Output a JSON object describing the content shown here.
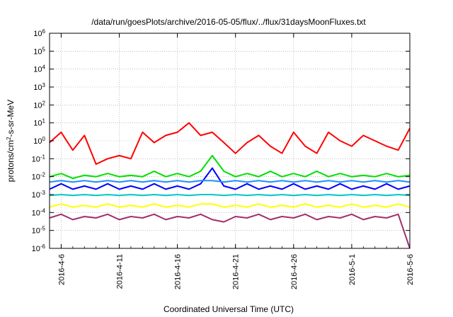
{
  "chart_data": {
    "type": "line",
    "title": "/data/run/goesPlots/archive/2016-05-05/flux/../flux/31daysMoonFluxes.txt",
    "xlabel": "Coordinated Universal Time (UTC)",
    "ylabel": {
      "prefix": "protons/cm",
      "sup": "2",
      "suffix": "-s-sr-MeV"
    },
    "y_scale": "log",
    "ylim": [
      -6,
      6
    ],
    "y_ticks": [
      {
        "base": "10",
        "exp": "6",
        "value": 6
      },
      {
        "base": "10",
        "exp": "5",
        "value": 5
      },
      {
        "base": "10",
        "exp": "4",
        "value": 4
      },
      {
        "base": "10",
        "exp": "3",
        "value": 3
      },
      {
        "base": "10",
        "exp": "2",
        "value": 2
      },
      {
        "base": "10",
        "exp": "1",
        "value": 1
      },
      {
        "base": "10",
        "exp": "0",
        "value": 0
      },
      {
        "base": "10",
        "exp": "-1",
        "value": -1
      },
      {
        "base": "10",
        "exp": "-2",
        "value": -2
      },
      {
        "base": "10",
        "exp": "-3",
        "value": -3
      },
      {
        "base": "10",
        "exp": "-4",
        "value": -4
      },
      {
        "base": "10",
        "exp": "-5",
        "value": -5
      },
      {
        "base": "10",
        "exp": "-6",
        "value": -6
      }
    ],
    "xlim": [
      "2016-04-05",
      "2016-05-06"
    ],
    "x_ticks": [
      {
        "label": "2016-4-6",
        "date": "2016-04-06"
      },
      {
        "label": "2016-4-11",
        "date": "2016-04-11"
      },
      {
        "label": "2016-4-16",
        "date": "2016-04-16"
      },
      {
        "label": "2016-4-21",
        "date": "2016-04-21"
      },
      {
        "label": "2016-4-26",
        "date": "2016-04-26"
      },
      {
        "label": "2016-5-1",
        "date": "2016-05-01"
      },
      {
        "label": "2016-5-6",
        "date": "2016-05-06"
      }
    ],
    "grid": true,
    "series": [
      {
        "color": "#ff0000",
        "x": [
          "2016-04-05",
          "2016-04-06",
          "2016-04-07",
          "2016-04-08",
          "2016-04-09",
          "2016-04-10",
          "2016-04-11",
          "2016-04-12",
          "2016-04-13",
          "2016-04-14",
          "2016-04-15",
          "2016-04-16",
          "2016-04-17",
          "2016-04-18",
          "2016-04-19",
          "2016-04-20",
          "2016-04-21",
          "2016-04-22",
          "2016-04-23",
          "2016-04-24",
          "2016-04-25",
          "2016-04-26",
          "2016-04-27",
          "2016-04-28",
          "2016-04-29",
          "2016-04-30",
          "2016-05-01",
          "2016-05-02",
          "2016-05-03",
          "2016-05-04",
          "2016-05-05",
          "2016-05-06"
        ],
        "y": [
          0.8,
          3,
          0.3,
          2,
          0.05,
          0.1,
          0.15,
          0.1,
          3,
          0.8,
          2,
          3,
          10,
          2,
          3,
          0.8,
          0.2,
          0.8,
          2,
          0.5,
          0.2,
          3,
          0.5,
          0.2,
          3,
          1,
          0.5,
          2,
          1,
          0.5,
          0.3,
          5
        ]
      },
      {
        "color": "#00e000",
        "x": [
          "2016-04-05",
          "2016-04-06",
          "2016-04-07",
          "2016-04-08",
          "2016-04-09",
          "2016-04-10",
          "2016-04-11",
          "2016-04-12",
          "2016-04-13",
          "2016-04-14",
          "2016-04-15",
          "2016-04-16",
          "2016-04-17",
          "2016-04-18",
          "2016-04-19",
          "2016-04-20",
          "2016-04-21",
          "2016-04-22",
          "2016-04-23",
          "2016-04-24",
          "2016-04-25",
          "2016-04-26",
          "2016-04-27",
          "2016-04-28",
          "2016-04-29",
          "2016-04-30",
          "2016-05-01",
          "2016-05-02",
          "2016-05-03",
          "2016-05-04",
          "2016-05-05",
          "2016-05-06"
        ],
        "y": [
          0.01,
          0.015,
          0.008,
          0.012,
          0.01,
          0.015,
          0.01,
          0.012,
          0.01,
          0.02,
          0.01,
          0.015,
          0.01,
          0.02,
          0.15,
          0.02,
          0.01,
          0.015,
          0.01,
          0.02,
          0.01,
          0.015,
          0.01,
          0.02,
          0.01,
          0.015,
          0.01,
          0.012,
          0.01,
          0.015,
          0.01,
          0.012
        ]
      },
      {
        "color": "#0000ff",
        "x": [
          "2016-04-05",
          "2016-04-06",
          "2016-04-07",
          "2016-04-08",
          "2016-04-09",
          "2016-04-10",
          "2016-04-11",
          "2016-04-12",
          "2016-04-13",
          "2016-04-14",
          "2016-04-15",
          "2016-04-16",
          "2016-04-17",
          "2016-04-18",
          "2016-04-19",
          "2016-04-20",
          "2016-04-21",
          "2016-04-22",
          "2016-04-23",
          "2016-04-24",
          "2016-04-25",
          "2016-04-26",
          "2016-04-27",
          "2016-04-28",
          "2016-04-29",
          "2016-04-30",
          "2016-05-01",
          "2016-05-02",
          "2016-05-03",
          "2016-05-04",
          "2016-05-05",
          "2016-05-06"
        ],
        "y": [
          0.002,
          0.004,
          0.002,
          0.003,
          0.002,
          0.004,
          0.002,
          0.003,
          0.002,
          0.004,
          0.002,
          0.003,
          0.002,
          0.004,
          0.03,
          0.003,
          0.002,
          0.004,
          0.002,
          0.003,
          0.002,
          0.004,
          0.002,
          0.003,
          0.002,
          0.004,
          0.002,
          0.003,
          0.002,
          0.004,
          0.002,
          0.003
        ]
      },
      {
        "color": "#1e90ff",
        "x": [
          "2016-04-05",
          "2016-04-06",
          "2016-04-07",
          "2016-04-08",
          "2016-04-09",
          "2016-04-10",
          "2016-04-11",
          "2016-04-12",
          "2016-04-13",
          "2016-04-14",
          "2016-04-15",
          "2016-04-16",
          "2016-04-17",
          "2016-04-18",
          "2016-04-19",
          "2016-04-20",
          "2016-04-21",
          "2016-04-22",
          "2016-04-23",
          "2016-04-24",
          "2016-04-25",
          "2016-04-26",
          "2016-04-27",
          "2016-04-28",
          "2016-04-29",
          "2016-04-30",
          "2016-05-01",
          "2016-05-02",
          "2016-05-03",
          "2016-05-04",
          "2016-05-05",
          "2016-05-06"
        ],
        "y": [
          0.005,
          0.006,
          0.005,
          0.006,
          0.005,
          0.006,
          0.005,
          0.006,
          0.005,
          0.006,
          0.005,
          0.006,
          0.005,
          0.006,
          0.006,
          0.005,
          0.006,
          0.005,
          0.006,
          0.005,
          0.006,
          0.005,
          0.006,
          0.005,
          0.006,
          0.005,
          0.006,
          0.005,
          0.006,
          0.005,
          0.006,
          0.005
        ]
      },
      {
        "color": "#00c8c8",
        "x": [
          "2016-04-05",
          "2016-04-06",
          "2016-04-07",
          "2016-04-08",
          "2016-04-09",
          "2016-04-10",
          "2016-04-11",
          "2016-04-12",
          "2016-04-13",
          "2016-04-14",
          "2016-04-15",
          "2016-04-16",
          "2016-04-17",
          "2016-04-18",
          "2016-04-19",
          "2016-04-20",
          "2016-04-21",
          "2016-04-22",
          "2016-04-23",
          "2016-04-24",
          "2016-04-25",
          "2016-04-26",
          "2016-04-27",
          "2016-04-28",
          "2016-04-29",
          "2016-04-30",
          "2016-05-01",
          "2016-05-02",
          "2016-05-03",
          "2016-05-04",
          "2016-05-05",
          "2016-05-06"
        ],
        "y": [
          0.0009,
          0.001,
          0.0009,
          0.001,
          0.0009,
          0.001,
          0.0009,
          0.001,
          0.0009,
          0.001,
          0.0009,
          0.001,
          0.0009,
          0.001,
          0.001,
          0.0009,
          0.001,
          0.0009,
          0.001,
          0.0009,
          0.001,
          0.0009,
          0.001,
          0.0009,
          0.001,
          0.0009,
          0.001,
          0.0009,
          0.001,
          0.0009,
          0.001,
          0.0009
        ]
      },
      {
        "color": "#ffff00",
        "x": [
          "2016-04-05",
          "2016-04-06",
          "2016-04-07",
          "2016-04-08",
          "2016-04-09",
          "2016-04-10",
          "2016-04-11",
          "2016-04-12",
          "2016-04-13",
          "2016-04-14",
          "2016-04-15",
          "2016-04-16",
          "2016-04-17",
          "2016-04-18",
          "2016-04-19",
          "2016-04-20",
          "2016-04-21",
          "2016-04-22",
          "2016-04-23",
          "2016-04-24",
          "2016-04-25",
          "2016-04-26",
          "2016-04-27",
          "2016-04-28",
          "2016-04-29",
          "2016-04-30",
          "2016-05-01",
          "2016-05-02",
          "2016-05-03",
          "2016-05-04",
          "2016-05-05",
          "2016-05-06"
        ],
        "y": [
          0.0002,
          0.0003,
          0.0002,
          0.00025,
          0.0002,
          0.0003,
          0.0002,
          0.00025,
          0.0002,
          0.0003,
          0.0002,
          0.00025,
          0.0002,
          0.0003,
          0.0003,
          0.0002,
          0.00025,
          0.0002,
          0.0003,
          0.0002,
          0.00025,
          0.0002,
          0.0003,
          0.0002,
          0.00025,
          0.0002,
          0.0003,
          0.0002,
          0.00025,
          0.0002,
          0.0003,
          0.0002
        ]
      },
      {
        "color": "#a0306e",
        "x": [
          "2016-04-05",
          "2016-04-06",
          "2016-04-07",
          "2016-04-08",
          "2016-04-09",
          "2016-04-10",
          "2016-04-11",
          "2016-04-12",
          "2016-04-13",
          "2016-04-14",
          "2016-04-15",
          "2016-04-16",
          "2016-04-17",
          "2016-04-18",
          "2016-04-19",
          "2016-04-20",
          "2016-04-21",
          "2016-04-22",
          "2016-04-23",
          "2016-04-24",
          "2016-04-25",
          "2016-04-26",
          "2016-04-27",
          "2016-04-28",
          "2016-04-29",
          "2016-04-30",
          "2016-05-01",
          "2016-05-02",
          "2016-05-03",
          "2016-05-04",
          "2016-05-05",
          "2016-05-06"
        ],
        "y": [
          5e-05,
          8e-05,
          4e-05,
          6e-05,
          5e-05,
          8e-05,
          4e-05,
          6e-05,
          5e-05,
          8e-05,
          4e-05,
          6e-05,
          5e-05,
          8e-05,
          4e-05,
          3e-05,
          6e-05,
          5e-05,
          8e-05,
          4e-05,
          6e-05,
          5e-05,
          8e-05,
          4e-05,
          6e-05,
          5e-05,
          8e-05,
          4e-05,
          6e-05,
          5e-05,
          8e-05,
          1e-06
        ]
      }
    ]
  }
}
